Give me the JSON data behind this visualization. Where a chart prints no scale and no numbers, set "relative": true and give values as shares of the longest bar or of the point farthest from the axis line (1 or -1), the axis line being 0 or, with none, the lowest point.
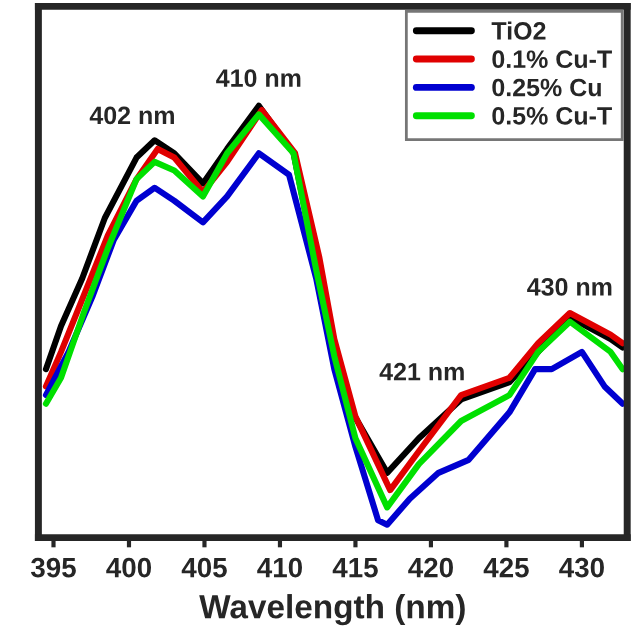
{
  "chart_data": {
    "type": "line",
    "relative": true,
    "xlabel": "Wavelength (nm)",
    "xlim": [
      394,
      433
    ],
    "xticks": [
      395,
      400,
      405,
      410,
      415,
      420,
      425,
      430
    ],
    "legend": "top right",
    "grid": false,
    "line_style": "solid",
    "marker": "none",
    "tick_labels": "x",
    "annotations": [
      {
        "text": "402 nm",
        "x": 401.7,
        "y": 0.92
      },
      {
        "text": "410 nm",
        "x": 408.6,
        "y": 1.0
      },
      {
        "text": "421 nm",
        "x": 422,
        "y": 0.32
      },
      {
        "text": "430 nm",
        "x": 429.2,
        "y": 0.51
      }
    ],
    "series": [
      {
        "name": "TiO2",
        "color": "#000000",
        "x": [
          394.5,
          395.5,
          396.9,
          398.4,
          400.5,
          401.7,
          403,
          404.9,
          406.5,
          408.6,
          410.9,
          412.4,
          413.3,
          414.8,
          417.1,
          419.2,
          422,
          425.2,
          427.1,
          429.2,
          431.9,
          432.7
        ],
        "values": [
          0.39,
          0.49,
          0.6,
          0.74,
          0.88,
          0.92,
          0.89,
          0.82,
          0.9,
          1.0,
          0.89,
          0.63,
          0.45,
          0.29,
          0.15,
          0.23,
          0.32,
          0.36,
          0.43,
          0.51,
          0.46,
          0.44
        ]
      },
      {
        "name": "0.1% Cu-T",
        "color": "#e00000",
        "x": [
          394.5,
          395.5,
          397,
          398.6,
          400.5,
          401.9,
          403,
          404.9,
          406.5,
          408.8,
          411,
          412.6,
          413.6,
          415,
          417.3,
          419.2,
          422,
          425.2,
          427.1,
          429.2,
          431.9,
          432.7
        ],
        "values": [
          0.35,
          0.43,
          0.56,
          0.7,
          0.83,
          0.9,
          0.88,
          0.8,
          0.87,
          0.99,
          0.89,
          0.65,
          0.46,
          0.28,
          0.11,
          0.2,
          0.33,
          0.37,
          0.45,
          0.52,
          0.47,
          0.45
        ]
      },
      {
        "name": "0.25% Cu",
        "color": "#0000d0",
        "x": [
          394.5,
          396,
          397.6,
          399,
          400.5,
          401.7,
          403,
          404.9,
          406.5,
          408.6,
          410.6,
          412.4,
          413.6,
          415,
          416.5,
          417.1,
          418.6,
          420.5,
          422.5,
          425.2,
          426.9,
          428,
          430,
          431.5,
          432.7
        ],
        "values": [
          0.33,
          0.43,
          0.56,
          0.69,
          0.78,
          0.81,
          0.78,
          0.73,
          0.79,
          0.89,
          0.84,
          0.6,
          0.39,
          0.21,
          0.04,
          0.03,
          0.09,
          0.15,
          0.18,
          0.29,
          0.39,
          0.39,
          0.43,
          0.35,
          0.31
        ]
      },
      {
        "name": "0.5% Cu-T",
        "color": "#00e000",
        "x": [
          394.5,
          395.5,
          397,
          398.6,
          400.5,
          401.7,
          403,
          404.9,
          406.5,
          408.6,
          410.9,
          412.4,
          413.6,
          415,
          417.1,
          419.2,
          422,
          425.2,
          427.1,
          429.2,
          431.9,
          432.7
        ],
        "values": [
          0.31,
          0.37,
          0.52,
          0.67,
          0.83,
          0.87,
          0.85,
          0.79,
          0.89,
          0.98,
          0.89,
          0.62,
          0.42,
          0.23,
          0.07,
          0.17,
          0.27,
          0.33,
          0.43,
          0.5,
          0.43,
          0.39
        ]
      }
    ]
  }
}
